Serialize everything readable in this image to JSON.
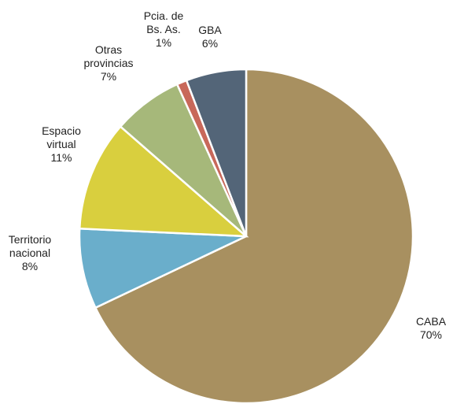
{
  "chart_data": {
    "type": "pie",
    "categories": [
      "CABA",
      "Territorio nacional",
      "Espacio virtual",
      "Otras provincias",
      "Pcia. de Bs. As.",
      "GBA"
    ],
    "values": [
      70,
      8,
      11,
      7,
      1,
      6
    ],
    "value_labels": [
      "70%",
      "8%",
      "11%",
      "7%",
      "1%",
      "6%"
    ],
    "colors": [
      "#a89060",
      "#6aaecb",
      "#d9cf3e",
      "#a6b87a",
      "#c8685a",
      "#536578"
    ]
  }
}
